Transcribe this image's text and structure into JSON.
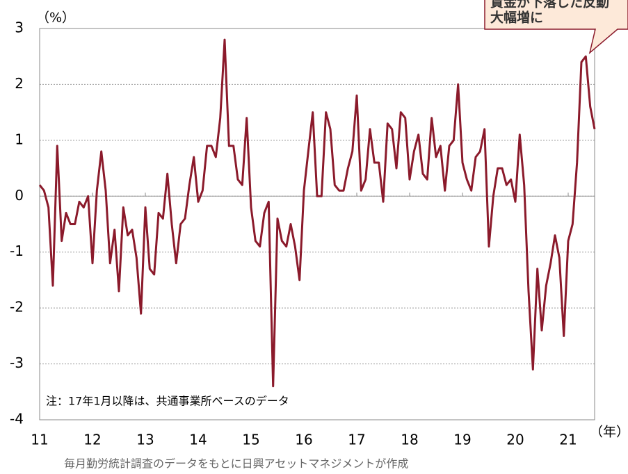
{
  "chart_data": {
    "type": "line",
    "y_label": "（%）",
    "x_label": "（年）",
    "note": "注：17年1月以降は、共通事業所ベースのデータ",
    "source": "毎月勤労統計調査のデータをもとに日興アセットマネジメントが作成",
    "annotation": [
      "賃金が下落した反動",
      "大幅増に"
    ],
    "categories": [
      "11",
      null,
      null,
      null,
      null,
      null,
      null,
      null,
      null,
      null,
      null,
      null,
      "12",
      null,
      null,
      null,
      null,
      null,
      null,
      null,
      null,
      null,
      null,
      null,
      "13",
      null,
      null,
      null,
      null,
      null,
      null,
      null,
      null,
      null,
      null,
      null,
      "14",
      null,
      null,
      null,
      null,
      null,
      null,
      null,
      null,
      null,
      null,
      null,
      "15",
      null,
      null,
      null,
      null,
      null,
      null,
      null,
      null,
      null,
      null,
      null,
      "16",
      null,
      null,
      null,
      null,
      null,
      null,
      null,
      null,
      null,
      null,
      null,
      "17",
      null,
      null,
      null,
      null,
      null,
      null,
      null,
      null,
      null,
      null,
      null,
      "18",
      null,
      null,
      null,
      null,
      null,
      null,
      null,
      null,
      null,
      null,
      null,
      "19",
      null,
      null,
      null,
      null,
      null,
      null,
      null,
      null,
      null,
      null,
      null,
      "20",
      null,
      null,
      null,
      null,
      null,
      null,
      null,
      null,
      null,
      null,
      null,
      "21",
      null,
      null,
      null,
      null,
      null,
      null
    ],
    "series": [
      {
        "color": "#8b1a2b",
        "values": [
          0.2,
          0.1,
          -0.2,
          -1.6,
          0.9,
          -0.8,
          -0.3,
          -0.5,
          -0.5,
          -0.1,
          -0.2,
          0.0,
          -1.2,
          0.1,
          0.8,
          0.1,
          -1.2,
          -0.6,
          -1.7,
          -0.2,
          -0.7,
          -0.6,
          -1.1,
          -2.1,
          -0.2,
          -1.3,
          -1.4,
          -0.3,
          -0.4,
          0.4,
          -0.5,
          -1.2,
          -0.5,
          -0.4,
          0.2,
          0.7,
          -0.1,
          0.1,
          0.9,
          0.9,
          0.7,
          1.4,
          2.8,
          0.9,
          0.9,
          0.3,
          0.2,
          1.4,
          -0.2,
          -0.8,
          -0.9,
          -0.3,
          -0.1,
          -3.4,
          -0.4,
          -0.8,
          -0.9,
          -0.5,
          -0.9,
          -1.5,
          0.1,
          0.8,
          1.5,
          0.0,
          0.0,
          1.5,
          1.2,
          0.2,
          0.1,
          0.1,
          0.5,
          0.8,
          1.8,
          0.1,
          0.3,
          1.2,
          0.6,
          0.6,
          -0.1,
          1.3,
          1.2,
          0.5,
          1.5,
          1.4,
          0.3,
          0.8,
          1.1,
          0.4,
          0.3,
          1.4,
          0.7,
          0.9,
          0.1,
          0.9,
          1.0,
          2.0,
          0.6,
          0.3,
          0.1,
          0.7,
          0.8,
          1.2,
          -0.9,
          0.0,
          0.5,
          0.5,
          0.2,
          0.3,
          -0.1,
          1.1,
          0.2,
          -1.7,
          -3.1,
          -1.3,
          -2.4,
          -1.6,
          -1.2,
          -0.7,
          -1.1,
          -2.5,
          -0.8,
          -0.5,
          0.6,
          2.4,
          2.5,
          1.6,
          1.2
        ]
      }
    ],
    "ylim": [
      -4,
      3
    ],
    "yticks": [
      -4,
      -3,
      -2,
      -1,
      0,
      1,
      2,
      3
    ],
    "grid": true
  }
}
